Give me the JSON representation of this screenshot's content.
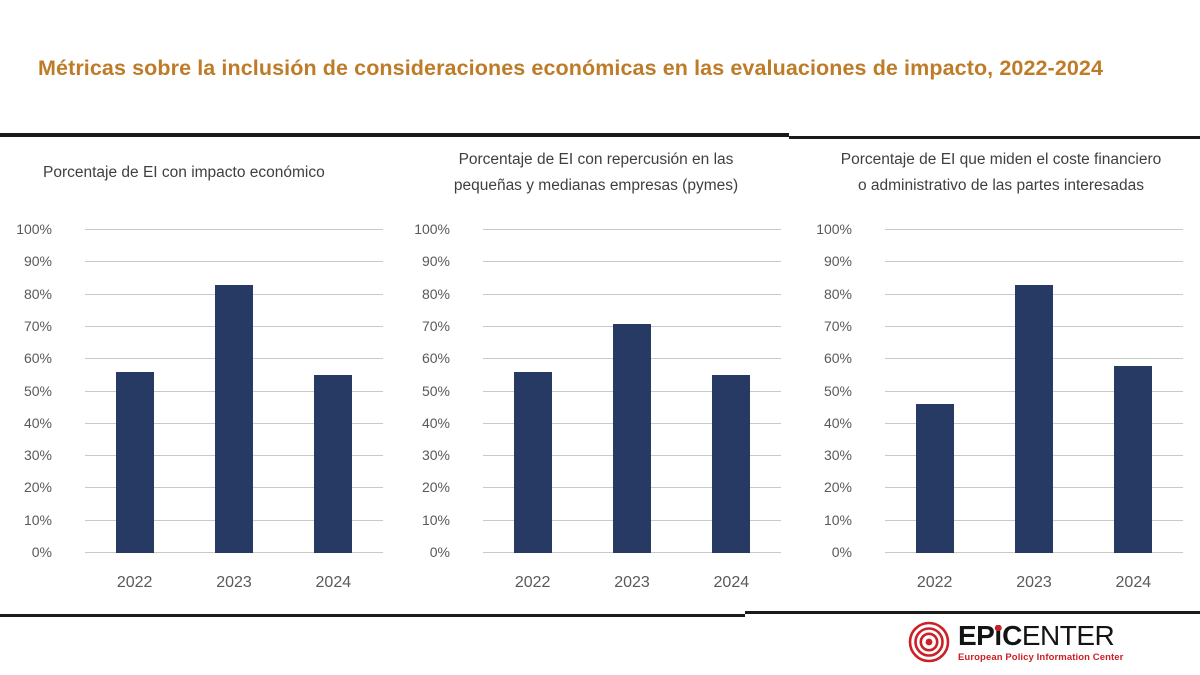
{
  "page_title": "Métricas sobre la inclusión de consideraciones económicas en las evaluaciones de impacto, 2022-2024",
  "colors": {
    "title": "#BE7B28",
    "bar": "#263A64",
    "axis_text": "#595959",
    "panel_title": "#3F3F3F",
    "gridline": "#C9C9C9",
    "separator": "#1A1A1A",
    "logo_red": "#CC2027",
    "logo_black": "#141414"
  },
  "chart_data": [
    {
      "type": "bar",
      "title": "Porcentaje de EI con impacto económico",
      "title_lines": [
        "Porcentaje de EI con impacto económico"
      ],
      "title_align": "left",
      "categories": [
        "2022",
        "2023",
        "2024"
      ],
      "values": [
        56,
        83,
        55
      ],
      "ylim": [
        0,
        100
      ],
      "ytick_step": 10,
      "yticks": [
        "100%",
        "90%",
        "80%",
        "70%",
        "60%",
        "50%",
        "40%",
        "30%",
        "20%",
        "10%",
        "0%"
      ],
      "grid": true,
      "legend": false,
      "bar_color": "#263A64"
    },
    {
      "type": "bar",
      "title": "Porcentaje de EI con repercusión en las pequeñas y medianas empresas (pymes)",
      "title_lines": [
        "Porcentaje de EI con repercusión en las",
        "pequeñas y medianas empresas (pymes)"
      ],
      "title_align": "center",
      "categories": [
        "2022",
        "2023",
        "2024"
      ],
      "values": [
        56,
        71,
        55
      ],
      "ylim": [
        0,
        100
      ],
      "ytick_step": 10,
      "yticks": [
        "100%",
        "90%",
        "80%",
        "70%",
        "60%",
        "50%",
        "40%",
        "30%",
        "20%",
        "10%",
        "0%"
      ],
      "grid": true,
      "legend": false,
      "bar_color": "#263A64"
    },
    {
      "type": "bar",
      "title": "Porcentaje de EI que miden el coste financiero o administrativo de las partes interesadas",
      "title_lines": [
        "Porcentaje de EI que miden el coste financiero",
        "o administrativo de las partes interesadas"
      ],
      "title_align": "center",
      "categories": [
        "2022",
        "2023",
        "2024"
      ],
      "values": [
        46,
        83,
        58
      ],
      "ylim": [
        0,
        100
      ],
      "ytick_step": 10,
      "yticks": [
        "100%",
        "90%",
        "80%",
        "70%",
        "60%",
        "50%",
        "40%",
        "30%",
        "20%",
        "10%",
        "0%"
      ],
      "grid": true,
      "legend": false,
      "bar_color": "#263A64"
    }
  ],
  "logo": {
    "mark_icon": "concentric-circles-target-icon",
    "text_ep": "EP",
    "text_i": "i",
    "text_c": "C",
    "text_enter": "ENTER",
    "full_name": "EPiCENTER",
    "tagline": "European Policy Information Center"
  }
}
